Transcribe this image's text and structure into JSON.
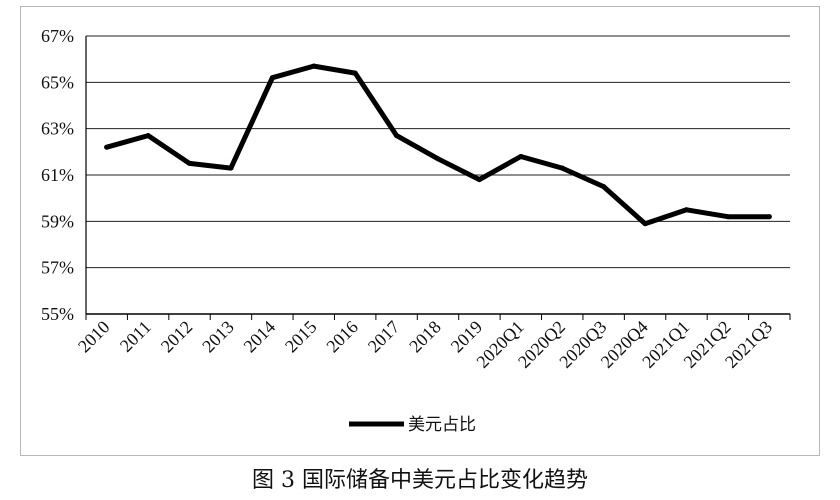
{
  "caption": "图 3 国际储备中美元占比变化趋势",
  "chart_data": {
    "type": "line",
    "title": "",
    "xlabel": "",
    "ylabel": "",
    "categories": [
      "2010",
      "2011",
      "2012",
      "2013",
      "2014",
      "2015",
      "2016",
      "2017",
      "2018",
      "2019",
      "2020Q1",
      "2020Q2",
      "2020Q3",
      "2020Q4",
      "2021Q1",
      "2021Q2",
      "2021Q3"
    ],
    "series": [
      {
        "name": "美元占比",
        "values": [
          62.2,
          62.7,
          61.5,
          61.3,
          65.2,
          65.7,
          65.4,
          62.7,
          61.7,
          60.8,
          61.8,
          61.3,
          60.5,
          58.9,
          59.5,
          59.2,
          59.2
        ]
      }
    ],
    "ylim": [
      55,
      67
    ],
    "yticks": [
      55,
      57,
      59,
      61,
      63,
      65,
      67
    ],
    "ytick_labels": [
      "55%",
      "57%",
      "59%",
      "61%",
      "63%",
      "65%",
      "67%"
    ],
    "grid": true,
    "legend_position": "bottom",
    "line_color": "#000000"
  }
}
